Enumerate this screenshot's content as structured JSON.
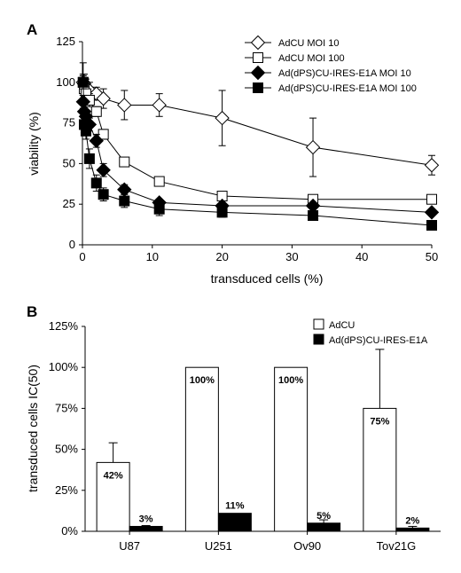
{
  "chart_data": [
    {
      "panel": "A",
      "type": "line",
      "xlabel": "transduced cells (%)",
      "ylabel": "viability (%)",
      "xlim": [
        0,
        50
      ],
      "ylim": [
        0,
        125
      ],
      "xticks": [
        "0",
        "10",
        "20",
        "30",
        "40",
        "50"
      ],
      "yticks": [
        "0",
        "25",
        "50",
        "75",
        "100",
        "125"
      ],
      "legend_position": "top-right",
      "series": [
        {
          "name": "AdCU MOI 10",
          "marker": "open-diamond",
          "x": [
            0.1,
            0.25,
            0.5,
            1,
            2,
            3,
            6,
            11,
            20,
            33,
            50
          ],
          "y": [
            100,
            99,
            97,
            95,
            93,
            90,
            86,
            86,
            78,
            60,
            49
          ],
          "err": [
            12,
            6,
            5,
            5,
            4,
            6,
            9,
            7,
            17,
            18,
            6
          ]
        },
        {
          "name": "AdCU MOI 100",
          "marker": "open-square",
          "x": [
            0.1,
            0.25,
            0.5,
            1,
            2,
            3,
            6,
            11,
            20,
            33,
            50
          ],
          "y": [
            100,
            96,
            93,
            89,
            82,
            68,
            51,
            39,
            30,
            28,
            28
          ],
          "err": [
            5,
            4,
            4,
            4,
            3,
            3,
            2,
            2,
            2,
            2,
            2
          ]
        },
        {
          "name": "Ad(dPS)CU-IRES-E1A MOI 10",
          "marker": "filled-diamond",
          "x": [
            0.1,
            0.25,
            0.5,
            1,
            2,
            3,
            6,
            11,
            20,
            33,
            50
          ],
          "y": [
            88,
            82,
            79,
            74,
            64,
            46,
            34,
            26,
            24,
            24,
            20
          ],
          "err": [
            4,
            4,
            4,
            4,
            4,
            4,
            3,
            2,
            2,
            2,
            2
          ]
        },
        {
          "name": "Ad(dPS)CU-IRES-E1A MOI 100",
          "marker": "filled-square",
          "x": [
            0.1,
            0.25,
            0.5,
            1,
            2,
            3,
            6,
            11,
            20,
            33,
            50
          ],
          "y": [
            100,
            74,
            70,
            53,
            38,
            31,
            27,
            22,
            20,
            18,
            12
          ],
          "err": [
            4,
            5,
            5,
            6,
            5,
            4,
            4,
            4,
            3,
            2,
            2
          ]
        }
      ]
    },
    {
      "panel": "B",
      "type": "bar",
      "ylabel": "transduced cells IC(50)",
      "ylim": [
        0,
        125
      ],
      "yticks": [
        "0%",
        "25%",
        "50%",
        "75%",
        "100%",
        "125%"
      ],
      "categories": [
        "U87",
        "U251",
        "Ov90",
        "Tov21G"
      ],
      "legend_position": "top-right",
      "series": [
        {
          "name": "AdCU",
          "fill": "#ffffff",
          "values": [
            42,
            100,
            100,
            75
          ],
          "labels": [
            "42%",
            "100%",
            "100%",
            "75%"
          ],
          "err": [
            12,
            0,
            0,
            36
          ]
        },
        {
          "name": "Ad(dPS)CU-IRES-E1A",
          "fill": "#000000",
          "values": [
            3,
            11,
            5,
            2
          ],
          "labels": [
            "3%",
            "11%",
            "5%",
            "2%"
          ],
          "err": [
            0.5,
            0,
            2,
            1
          ]
        }
      ]
    }
  ]
}
